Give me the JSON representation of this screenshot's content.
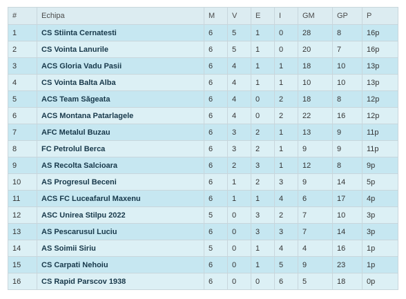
{
  "table": {
    "headers": [
      "#",
      "Echipa",
      "M",
      "V",
      "E",
      "I",
      "GM",
      "GP",
      "P"
    ],
    "rows": [
      [
        "1",
        "CS Stiinta Cernatesti",
        "6",
        "5",
        "1",
        "0",
        "28",
        "8",
        "16p"
      ],
      [
        "2",
        "CS Vointa Lanurile",
        "6",
        "5",
        "1",
        "0",
        "20",
        "7",
        "16p"
      ],
      [
        "3",
        "ACS Gloria Vadu Pasii",
        "6",
        "4",
        "1",
        "1",
        "18",
        "10",
        "13p"
      ],
      [
        "4",
        "CS Vointa Balta Alba",
        "6",
        "4",
        "1",
        "1",
        "10",
        "10",
        "13p"
      ],
      [
        "5",
        "ACS Team Săgeata",
        "6",
        "4",
        "0",
        "2",
        "18",
        "8",
        "12p"
      ],
      [
        "6",
        "ACS Montana Patarlagele",
        "6",
        "4",
        "0",
        "2",
        "22",
        "16",
        "12p"
      ],
      [
        "7",
        "AFC Metalul Buzau",
        "6",
        "3",
        "2",
        "1",
        "13",
        "9",
        "11p"
      ],
      [
        "8",
        "FC Petrolul Berca",
        "6",
        "3",
        "2",
        "1",
        "9",
        "9",
        "11p"
      ],
      [
        "9",
        "AS Recolta Salcioara",
        "6",
        "2",
        "3",
        "1",
        "12",
        "8",
        "9p"
      ],
      [
        "10",
        "AS Progresul Beceni",
        "6",
        "1",
        "2",
        "3",
        "9",
        "14",
        "5p"
      ],
      [
        "11",
        "ACS FC Luceafarul Maxenu",
        "6",
        "1",
        "1",
        "4",
        "6",
        "17",
        "4p"
      ],
      [
        "12",
        "ASC Unirea Stilpu 2022",
        "5",
        "0",
        "3",
        "2",
        "7",
        "10",
        "3p"
      ],
      [
        "13",
        "AS Pescarusul Luciu",
        "6",
        "0",
        "3",
        "3",
        "7",
        "14",
        "3p"
      ],
      [
        "14",
        "AS Soimii Siriu",
        "5",
        "0",
        "1",
        "4",
        "4",
        "16",
        "1p"
      ],
      [
        "15",
        "CS Carpati Nehoiu",
        "6",
        "0",
        "1",
        "5",
        "9",
        "23",
        "1p"
      ],
      [
        "16",
        "CS Rapid Parscov 1938",
        "6",
        "0",
        "0",
        "6",
        "5",
        "18",
        "0p"
      ]
    ]
  }
}
